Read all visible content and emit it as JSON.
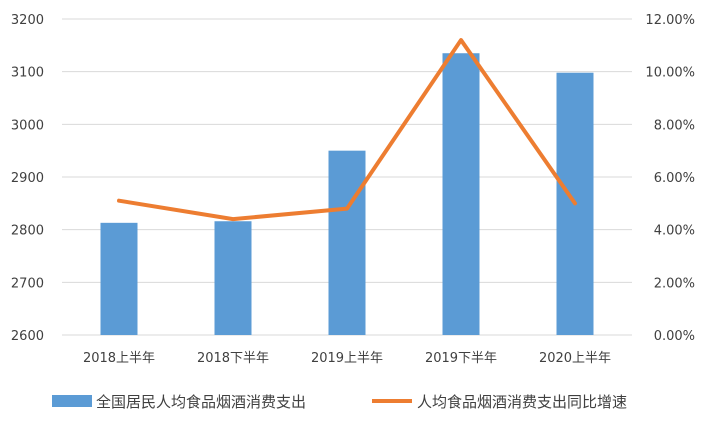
{
  "chart_data": {
    "type": "bar",
    "categories": [
      "2018上半年",
      "2018下半年",
      "2019上半年",
      "2019下半年",
      "2020上半年"
    ],
    "series": [
      {
        "name": "全国居民人均食品烟酒消费支出",
        "type": "bar",
        "axis": "left",
        "color": "#5b9bd5",
        "values": [
          2813,
          2816,
          2950,
          3135,
          3098
        ]
      },
      {
        "name": "人均食品烟酒消费支出同比增速",
        "type": "line",
        "axis": "right",
        "color": "#ed7d31",
        "values": [
          5.1,
          4.4,
          4.8,
          11.2,
          5.0
        ]
      }
    ],
    "left_axis": {
      "ylim": [
        2600,
        3200
      ],
      "ticks": [
        2600,
        2700,
        2800,
        2900,
        3000,
        3100,
        3200
      ],
      "tick_labels": [
        "2600",
        "2700",
        "2800",
        "2900",
        "3000",
        "3100",
        "3200"
      ]
    },
    "right_axis": {
      "ylim": [
        0,
        12
      ],
      "ticks": [
        0,
        2,
        4,
        6,
        8,
        10,
        12
      ],
      "tick_labels": [
        "0.00%",
        "2.00%",
        "4.00%",
        "6.00%",
        "8.00%",
        "10.00%",
        "12.00%"
      ]
    },
    "grid": true,
    "legend": "bottom"
  }
}
